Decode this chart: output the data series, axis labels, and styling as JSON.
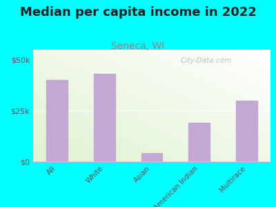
{
  "title": "Median per capita income in 2022",
  "subtitle": "Seneca, WI",
  "categories": [
    "All",
    "White",
    "Asian",
    "American Indian",
    "Multirace"
  ],
  "values": [
    40000,
    43000,
    4000,
    19000,
    30000
  ],
  "bar_color": "#c4a8d4",
  "background_outer": "#00ffff",
  "ylabel_ticks": [
    "$0",
    "$25k",
    "$50k"
  ],
  "ytick_values": [
    0,
    25000,
    50000
  ],
  "ylim": [
    0,
    55000
  ],
  "title_fontsize": 13,
  "subtitle_fontsize": 10,
  "subtitle_color": "#888888",
  "tick_label_fontsize": 7.5,
  "ytick_fontsize": 8,
  "watermark": "City-Data.com",
  "watermark_color": "#b0b8b0"
}
